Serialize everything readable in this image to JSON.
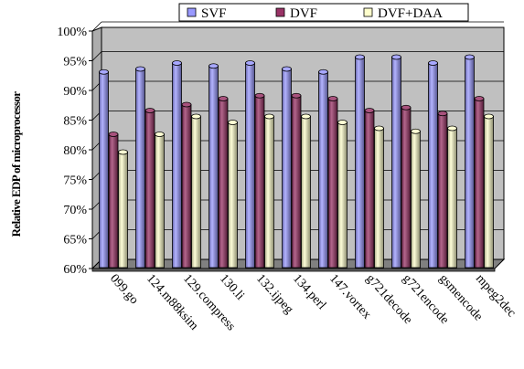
{
  "chart_data": {
    "type": "bar",
    "ylabel": "Relative EDP of microprocessor",
    "ylim": [
      60,
      100
    ],
    "yticks": [
      "60%",
      "65%",
      "70%",
      "75%",
      "80%",
      "85%",
      "90%",
      "95%",
      "100%"
    ],
    "grid": true,
    "legend_position": "top",
    "style": "3d-cylinder-bars",
    "categories": [
      "099.go",
      "124.m88ksim",
      "129.compress",
      "130.li",
      "132.ijpeg",
      "134.perl",
      "147.vortex",
      "g721decode",
      "g721encode",
      "gsmencode",
      "mpeg2dec"
    ],
    "series": [
      {
        "name": "SVF",
        "color": "#9999ff",
        "values": [
          92.5,
          93,
          94,
          93.5,
          94,
          93,
          92.5,
          95,
          95,
          94,
          95
        ]
      },
      {
        "name": "DVF",
        "color": "#993366",
        "values": [
          82,
          86,
          87,
          88,
          88.5,
          88.5,
          88,
          86,
          86.5,
          85.5,
          88
        ]
      },
      {
        "name": "DVF+DAA",
        "color": "#ffffcc",
        "values": [
          79,
          82,
          85,
          84,
          85,
          85,
          84,
          83,
          82.5,
          83,
          85
        ]
      }
    ],
    "colors": {
      "plot_wall": "#c0c0c0",
      "floor": "#808080",
      "gridline": "#000000"
    }
  }
}
